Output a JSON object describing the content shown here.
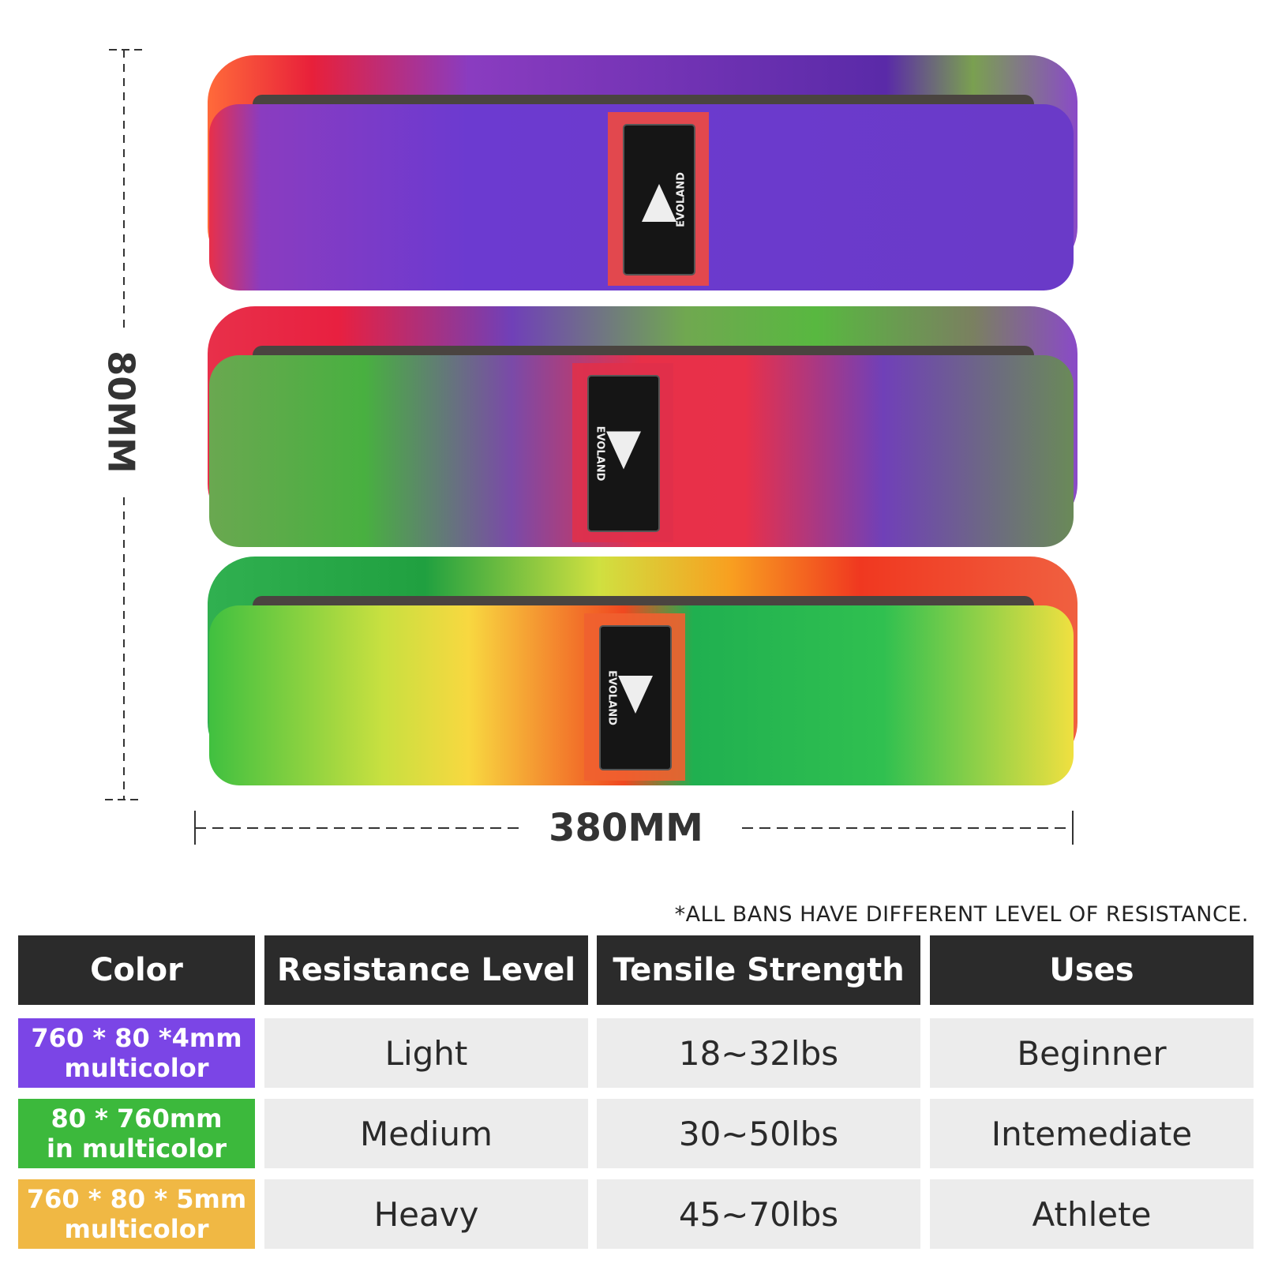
{
  "dimensions": {
    "height": "80MM",
    "width": "380MM"
  },
  "bands": [
    {
      "label": "EVOLAND"
    },
    {
      "label": "EVOLAND"
    },
    {
      "label": "EVOLAND"
    }
  ],
  "note": "*ALL BANS HAVE DIFFERENT LEVEL OF RESISTANCE.",
  "table": {
    "headers": [
      "Color",
      "Resistance Level",
      "Tensile Strength",
      "Uses"
    ],
    "rows": [
      [
        [
          "760 * 80 *4mm",
          "multicolor"
        ],
        "Light",
        "18~32lbs",
        "Beginner"
      ],
      [
        [
          "80 * 760mm",
          "in multicolor"
        ],
        "Medium",
        "30~50lbs",
        "Intemediate"
      ],
      [
        [
          "760 * 80 * 5mm",
          "multicolor"
        ],
        "Heavy",
        "45~70lbs",
        "Athlete"
      ]
    ]
  }
}
